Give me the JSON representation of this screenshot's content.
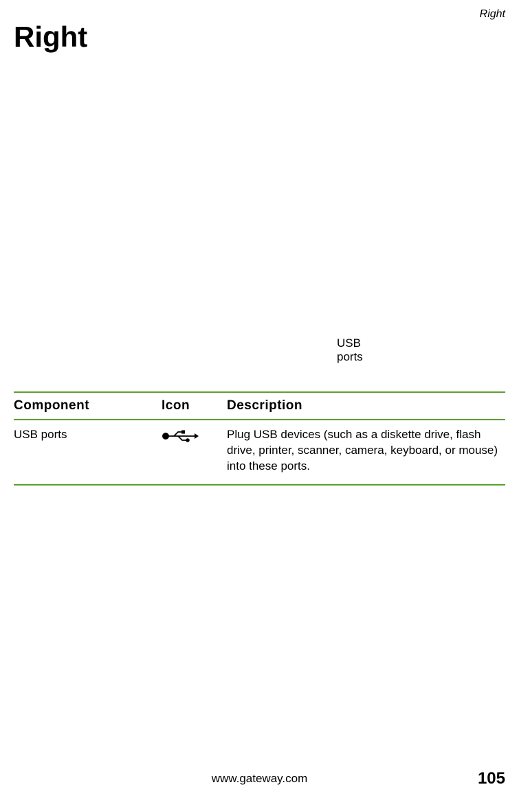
{
  "header": {
    "section_label": "Right"
  },
  "title": "Right",
  "diagram": {
    "callout_label": "USB\nports"
  },
  "table": {
    "columns": {
      "component": "Component",
      "icon": "Icon",
      "description": "Description"
    },
    "rows": [
      {
        "component": "USB ports",
        "icon_name": "usb-icon",
        "description": "Plug USB devices (such as a diskette drive, flash drive, printer, scanner, camera, keyboard, or mouse) into these ports."
      }
    ],
    "border_color": "#5aa02c",
    "header_fontsize": 19,
    "cell_fontsize": 17
  },
  "footer": {
    "url": "www.gateway.com",
    "page_number": "105"
  },
  "colors": {
    "text": "#000000",
    "background": "#ffffff",
    "table_border": "#5aa02c"
  },
  "typography": {
    "title_fontsize": 42,
    "title_weight": "bold",
    "header_label_fontsize": 16,
    "header_label_style": "italic",
    "body_fontsize": 17,
    "page_number_fontsize": 24,
    "page_number_weight": "bold",
    "font_family": "Arial, Helvetica, sans-serif"
  }
}
